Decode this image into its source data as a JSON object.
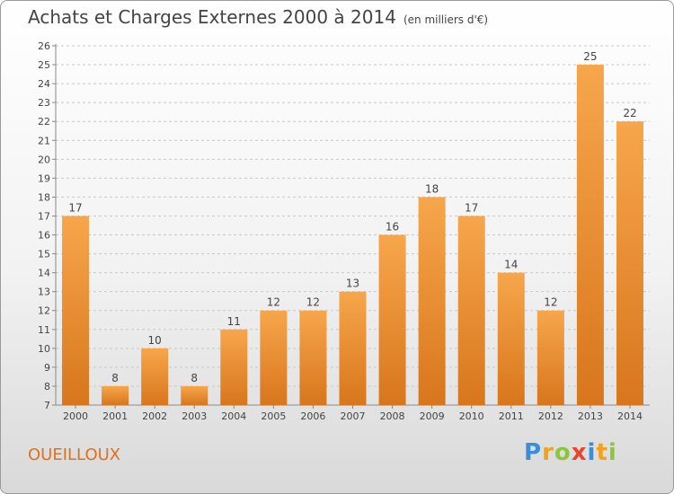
{
  "header": {
    "title": "Achats et Charges Externes 2000 à 2014",
    "subtitle": "(en milliers d'€)"
  },
  "footer": {
    "commune": "OUEILLOUX",
    "logo_letters": [
      "P",
      "r",
      "o",
      "x",
      "i",
      "t",
      "i"
    ],
    "logo_colors": [
      "#3a8dd8",
      "#f2a11a",
      "#8cc63f",
      "#e8452c",
      "#3a8dd8",
      "#f2a11a",
      "#8cc63f"
    ]
  },
  "colors": {
    "bar_light": "#f7a64c",
    "bar_dark": "#d8761c",
    "grid": "#c8c8c8",
    "commune": "#e0701a"
  },
  "chart_data": {
    "type": "bar",
    "title": "Achats et Charges Externes 2000 à 2014",
    "subtitle": "(en milliers d'€)",
    "categories": [
      "2000",
      "2001",
      "2002",
      "2003",
      "2004",
      "2005",
      "2006",
      "2007",
      "2008",
      "2009",
      "2010",
      "2011",
      "2012",
      "2013",
      "2014"
    ],
    "values": [
      17,
      8,
      10,
      8,
      11,
      12,
      12,
      13,
      16,
      18,
      17,
      14,
      12,
      25,
      22
    ],
    "ylim": [
      7,
      26
    ],
    "yticks": [
      7,
      8,
      9,
      10,
      11,
      12,
      13,
      14,
      15,
      16,
      17,
      18,
      19,
      20,
      21,
      22,
      23,
      24,
      25,
      26
    ],
    "grid": "horizontal dashed",
    "xlabel": "",
    "ylabel": ""
  }
}
